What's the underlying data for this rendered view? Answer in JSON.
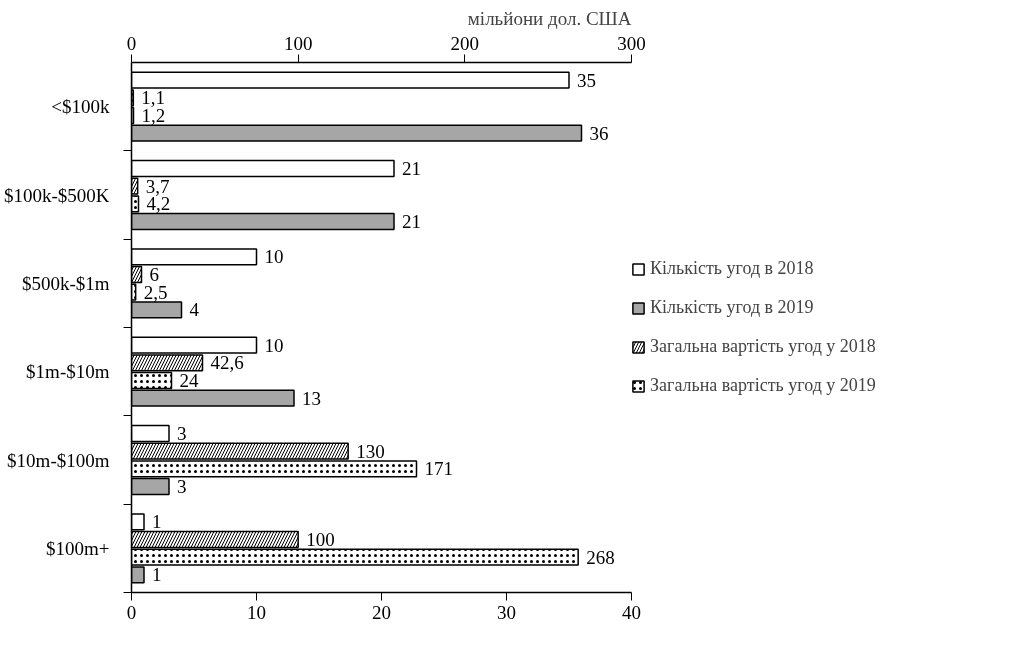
{
  "chart_data": {
    "type": "bar",
    "orientation": "horizontal",
    "categories": [
      "<$100k",
      "$100k-$500K",
      "$500k-$1m",
      "$1m-$10m",
      "$10m-$100m",
      "$100m+"
    ],
    "xlim": [
      0,
      40
    ],
    "xticks": [
      0,
      10,
      20,
      30,
      40
    ],
    "x2lim": [
      0,
      300
    ],
    "x2ticks": [
      0,
      100,
      200,
      300
    ],
    "x2label": "мільйони дол. США",
    "series": [
      {
        "name": "Кількість угод в 2018",
        "color": "#ffffff",
        "values": [
          35,
          21,
          10,
          10,
          3,
          1
        ],
        "value_labels": [
          "35",
          "21",
          "10",
          "10",
          "3",
          "1"
        ]
      },
      {
        "name": "Загальна вартість угод у 2018",
        "color": "#ffffff",
        "axis": "x2",
        "values": [
          1.1,
          3.7,
          6,
          42.6,
          130,
          100
        ],
        "value_labels": [
          "1,1",
          "3,7",
          "6",
          "42,6",
          "130",
          "100"
        ]
      },
      {
        "name": "Загальна вартість угод у 2019",
        "color": "#ffffff",
        "axis": "x2",
        "values": [
          1.2,
          4.2,
          2.5,
          24,
          171,
          268
        ],
        "value_labels": [
          "1,2",
          "4,2",
          "2,5",
          "24",
          "171",
          "268"
        ]
      },
      {
        "name": "Кількість угод в 2019",
        "color": "#a6a6a6",
        "values": [
          36,
          21,
          4,
          13,
          3,
          1
        ],
        "value_labels": [
          "36",
          "21",
          "4",
          "13",
          "3",
          "1"
        ]
      }
    ],
    "legend": "right",
    "grid": false
  }
}
